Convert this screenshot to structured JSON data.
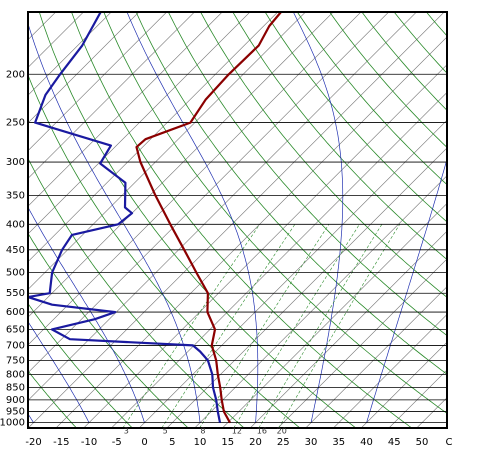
{
  "chart_data": {
    "type": "skewt",
    "x_unit": "C",
    "xlim": [
      -21,
      54.5
    ],
    "ylim": [
      1025,
      150
    ],
    "log_y": true,
    "xticks": [
      -20,
      -15,
      -10,
      -5,
      0,
      5,
      10,
      15,
      20,
      25,
      30,
      35,
      40,
      45,
      50
    ],
    "yticks": [
      200,
      250,
      300,
      350,
      400,
      450,
      500,
      550,
      600,
      650,
      700,
      750,
      800,
      850,
      900,
      950,
      1000
    ],
    "mixing_ratios": [
      3,
      5,
      8,
      12,
      16,
      20
    ],
    "series": [
      {
        "color": "#8b0000",
        "pressure": [
          1000,
          950,
          900,
          850,
          800,
          750,
          700,
          650,
          600,
          550,
          500,
          450,
          400,
          350,
          300,
          280,
          270,
          250,
          225,
          200,
          175,
          160,
          150
        ],
        "values": [
          15.4,
          12.3,
          9.8,
          7.3,
          4.5,
          1.7,
          -1.8,
          -4.1,
          -8.6,
          -11.9,
          -17.7,
          -24,
          -31.1,
          -39,
          -47.7,
          -51.1,
          -50.9,
          -45.8,
          -47.2,
          -47.6,
          -47.4,
          -49,
          -49.4
        ]
      },
      {
        "color": "#1a1aa0",
        "pressure": [
          1000,
          950,
          900,
          850,
          800,
          750,
          720,
          700,
          680,
          650,
          620,
          600,
          580,
          560,
          550,
          500,
          450,
          420,
          400,
          380,
          370,
          330,
          302,
          278,
          250,
          220,
          200,
          175,
          150
        ],
        "values": [
          13.6,
          11.2,
          8.8,
          6,
          3.5,
          0.2,
          -2.8,
          -5.2,
          -28.5,
          -33.5,
          -27.6,
          -25.2,
          -37.9,
          -43.6,
          -40.4,
          -43.7,
          -46,
          -46.9,
          -40.5,
          -40,
          -42.3,
          -46.7,
          -54.7,
          -56,
          -73.8,
          -76.9,
          -78,
          -79.2,
          -81.9
        ]
      }
    ]
  }
}
